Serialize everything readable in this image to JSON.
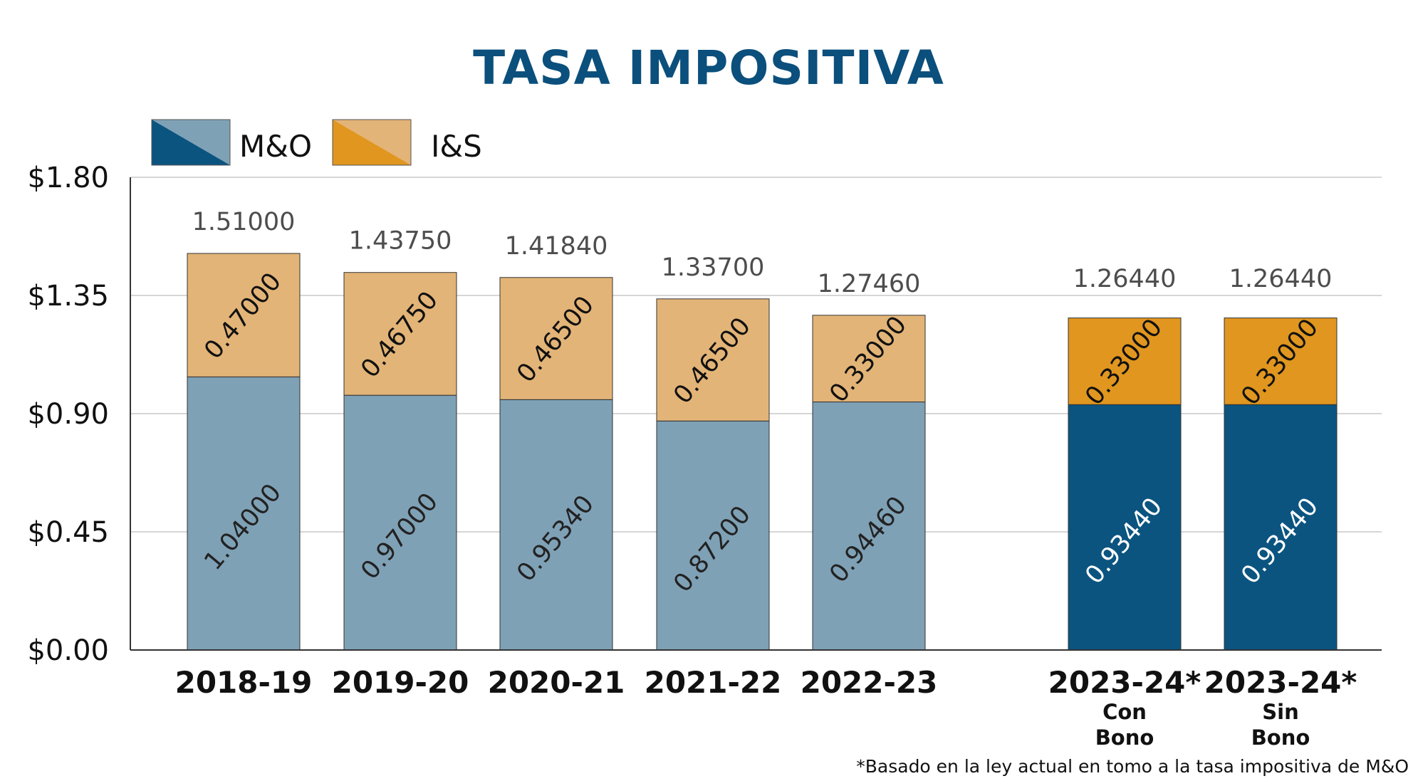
{
  "chart_data": {
    "type": "bar",
    "stacked": true,
    "title": "TASA IMPOSITIVA",
    "categories": [
      "2018-19",
      "2019-20",
      "2020-21",
      "2021-22",
      "2022-23",
      "2023-24*",
      "2023-24*"
    ],
    "category_sublabels": [
      [],
      [],
      [],
      [],
      [],
      [
        "Con",
        "Bono"
      ],
      [
        "Sin",
        "Bono"
      ]
    ],
    "series": [
      {
        "name": "M&O",
        "values": [
          1.04,
          0.97,
          0.9534,
          0.872,
          0.9446,
          0.9344,
          0.9344
        ]
      },
      {
        "name": "I&S",
        "values": [
          0.47,
          0.4675,
          0.465,
          0.465,
          0.33,
          0.33,
          0.33
        ]
      }
    ],
    "segment_labels": {
      "M&O": [
        "1.04000",
        "0.97000",
        "0.95340",
        "0.87200",
        "0.94460",
        "0.93440",
        "0.93440"
      ],
      "I&S": [
        "0.47000",
        "0.46750",
        "0.46500",
        "0.46500",
        "0.33000",
        "0.33000",
        "0.33000"
      ]
    },
    "totals": [
      "1.51000",
      "1.43750",
      "1.41840",
      "1.33700",
      "1.27460",
      "1.26440",
      "1.26440"
    ],
    "ylim": [
      0,
      1.8
    ],
    "yticks": [
      0,
      0.45,
      0.9,
      1.35,
      1.8
    ],
    "ytick_labels": [
      "$0.00",
      "$0.45",
      "$0.90",
      "$1.35",
      "$1.80"
    ],
    "projected_from_index": 5,
    "legend_position": "top-left",
    "grid": true,
    "footnote": "*Basado en la ley actual en tomo a la tasa impositiva de M&O",
    "colors": {
      "mo_historical": "#7fa1b6",
      "is_historical": "#e3b477",
      "mo_projected": "#0b5480",
      "is_projected": "#e0961f",
      "title": "#0b4f7c"
    }
  }
}
